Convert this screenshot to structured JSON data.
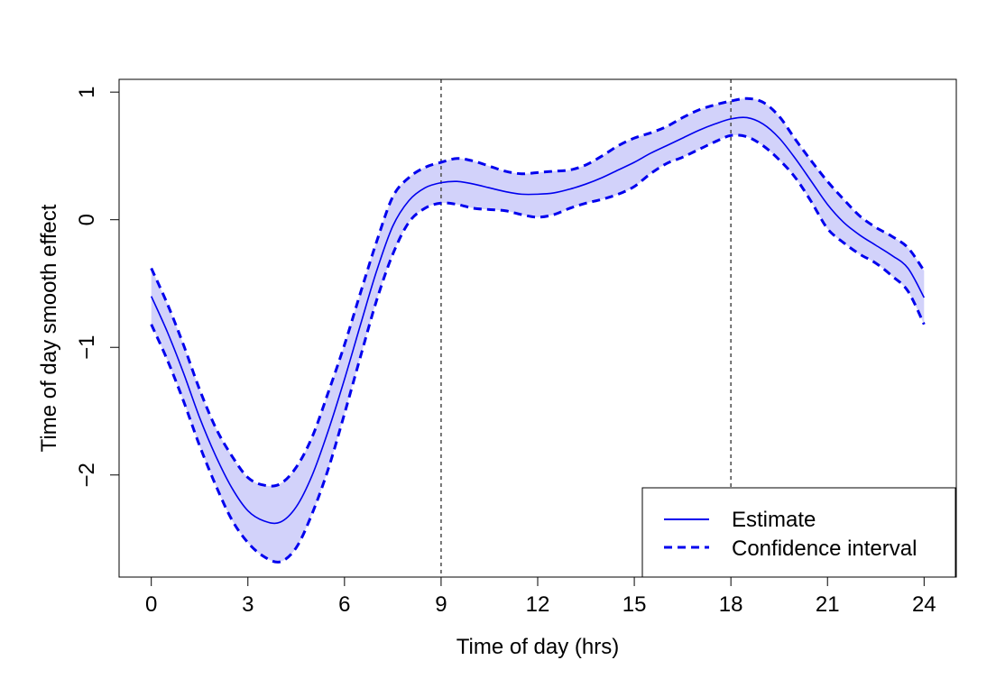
{
  "chart_data": {
    "type": "line",
    "xlabel": "Time of day (hrs)",
    "ylabel": "Time of day smooth effect",
    "xlim": [
      -1,
      25
    ],
    "ylim": [
      -2.8,
      1.1
    ],
    "xticks": [
      0,
      3,
      6,
      9,
      12,
      15,
      18,
      21,
      24
    ],
    "yticks": [
      -2,
      -1,
      0,
      1
    ],
    "reference_lines": [
      9,
      18
    ],
    "legend_position": "bottom-right",
    "grid": false,
    "colors": {
      "line": "#0000ee",
      "band": "#d2d2fa",
      "reference": "#555555"
    },
    "legend": [
      {
        "label": "Estimate",
        "style": "solid"
      },
      {
        "label": "Confidence interval",
        "style": "dashed"
      }
    ],
    "x": [
      0,
      0.5,
      1,
      1.5,
      2,
      2.5,
      3,
      3.5,
      4,
      4.5,
      5,
      5.5,
      6,
      6.5,
      7,
      7.5,
      8,
      8.5,
      9,
      9.5,
      10,
      10.5,
      11,
      11.5,
      12,
      12.5,
      13,
      13.5,
      14,
      14.5,
      15,
      15.5,
      16,
      16.5,
      17,
      17.5,
      18,
      18.5,
      19,
      19.5,
      20,
      20.5,
      21,
      21.5,
      22,
      22.5,
      23,
      23.5,
      24
    ],
    "series": [
      {
        "name": "Estimate",
        "values": [
          -0.6,
          -0.88,
          -1.2,
          -1.55,
          -1.85,
          -2.1,
          -2.28,
          -2.36,
          -2.37,
          -2.25,
          -2.0,
          -1.65,
          -1.25,
          -0.82,
          -0.4,
          -0.05,
          0.15,
          0.25,
          0.29,
          0.3,
          0.28,
          0.25,
          0.22,
          0.2,
          0.2,
          0.21,
          0.24,
          0.28,
          0.33,
          0.39,
          0.45,
          0.52,
          0.58,
          0.64,
          0.7,
          0.75,
          0.79,
          0.8,
          0.75,
          0.64,
          0.48,
          0.3,
          0.12,
          -0.02,
          -0.12,
          -0.2,
          -0.28,
          -0.38,
          -0.61
        ]
      },
      {
        "name": "Confidence interval",
        "lower": [
          -0.82,
          -1.1,
          -1.42,
          -1.77,
          -2.08,
          -2.35,
          -2.53,
          -2.64,
          -2.68,
          -2.57,
          -2.3,
          -1.95,
          -1.52,
          -1.07,
          -0.63,
          -0.27,
          -0.02,
          0.09,
          0.13,
          0.12,
          0.09,
          0.08,
          0.07,
          0.04,
          0.02,
          0.04,
          0.09,
          0.13,
          0.16,
          0.2,
          0.26,
          0.36,
          0.44,
          0.49,
          0.55,
          0.61,
          0.66,
          0.65,
          0.58,
          0.47,
          0.33,
          0.14,
          -0.07,
          -0.18,
          -0.27,
          -0.34,
          -0.44,
          -0.56,
          -0.82
        ],
        "upper": [
          -0.38,
          -0.66,
          -0.98,
          -1.33,
          -1.63,
          -1.85,
          -2.02,
          -2.08,
          -2.07,
          -1.94,
          -1.7,
          -1.35,
          -0.98,
          -0.57,
          -0.17,
          0.18,
          0.33,
          0.41,
          0.45,
          0.48,
          0.46,
          0.42,
          0.38,
          0.36,
          0.37,
          0.38,
          0.39,
          0.43,
          0.5,
          0.58,
          0.64,
          0.68,
          0.73,
          0.8,
          0.86,
          0.9,
          0.93,
          0.95,
          0.92,
          0.81,
          0.63,
          0.46,
          0.3,
          0.16,
          0.03,
          -0.06,
          -0.13,
          -0.22,
          -0.4
        ]
      }
    ]
  }
}
